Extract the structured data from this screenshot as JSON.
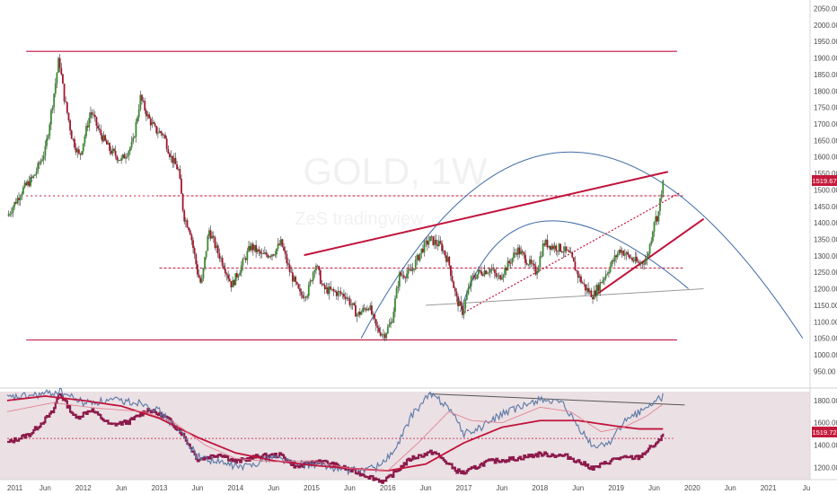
{
  "chart_data": [
    {
      "type": "candlestick",
      "watermark_symbol": "GOLD, 1W",
      "watermark_subtitle": "ZeS tradingview",
      "y_axis_ticks": [
        "2050.00",
        "2000.00",
        "1950.00",
        "1900.00",
        "1850.00",
        "1800.00",
        "1750.00",
        "1700.00",
        "1650.00",
        "1600.00",
        "1550.00",
        "1500.00",
        "1450.00",
        "1400.00",
        "1350.00",
        "1300.00",
        "1250.00",
        "1200.00",
        "1150.00",
        "1100.00",
        "1050.00",
        "1000.00",
        "950.00"
      ],
      "y_range": [
        910,
        2065
      ],
      "x_axis_ticks": [
        "2011",
        "Jun",
        "2012",
        "Jun",
        "2013",
        "Jun",
        "2014",
        "Jun",
        "2015",
        "Jun",
        "2016",
        "Jun",
        "2017",
        "Jun",
        "2018",
        "Jun",
        "2019",
        "Jun",
        "2020",
        "Jun",
        "2021",
        "Ju"
      ],
      "x_range": [
        2011.0,
        2021.5
      ],
      "last_price_label": "1519.67",
      "price_path": [
        [
          2011.0,
          1420
        ],
        [
          2011.2,
          1500
        ],
        [
          2011.35,
          1540
        ],
        [
          2011.5,
          1620
        ],
        [
          2011.62,
          1800
        ],
        [
          2011.68,
          1900
        ],
        [
          2011.75,
          1780
        ],
        [
          2011.85,
          1660
        ],
        [
          2011.95,
          1600
        ],
        [
          2012.1,
          1740
        ],
        [
          2012.2,
          1680
        ],
        [
          2012.35,
          1620
        ],
        [
          2012.5,
          1590
        ],
        [
          2012.65,
          1640
        ],
        [
          2012.75,
          1780
        ],
        [
          2012.85,
          1720
        ],
        [
          2012.95,
          1680
        ],
        [
          2013.05,
          1670
        ],
        [
          2013.15,
          1600
        ],
        [
          2013.25,
          1560
        ],
        [
          2013.32,
          1420
        ],
        [
          2013.4,
          1380
        ],
        [
          2013.5,
          1250
        ],
        [
          2013.55,
          1210
        ],
        [
          2013.65,
          1380
        ],
        [
          2013.75,
          1320
        ],
        [
          2013.85,
          1270
        ],
        [
          2013.95,
          1210
        ],
        [
          2014.1,
          1280
        ],
        [
          2014.2,
          1330
        ],
        [
          2014.35,
          1300
        ],
        [
          2014.5,
          1310
        ],
        [
          2014.6,
          1340
        ],
        [
          2014.7,
          1260
        ],
        [
          2014.85,
          1180
        ],
        [
          2014.95,
          1190
        ],
        [
          2015.05,
          1280
        ],
        [
          2015.15,
          1200
        ],
        [
          2015.3,
          1190
        ],
        [
          2015.45,
          1180
        ],
        [
          2015.6,
          1120
        ],
        [
          2015.75,
          1150
        ],
        [
          2015.85,
          1080
        ],
        [
          2015.95,
          1060
        ],
        [
          2016.05,
          1100
        ],
        [
          2016.15,
          1240
        ],
        [
          2016.3,
          1250
        ],
        [
          2016.45,
          1320
        ],
        [
          2016.55,
          1350
        ],
        [
          2016.7,
          1330
        ],
        [
          2016.8,
          1280
        ],
        [
          2016.9,
          1170
        ],
        [
          2016.98,
          1130
        ],
        [
          2017.1,
          1230
        ],
        [
          2017.2,
          1250
        ],
        [
          2017.35,
          1260
        ],
        [
          2017.45,
          1230
        ],
        [
          2017.6,
          1280
        ],
        [
          2017.7,
          1320
        ],
        [
          2017.85,
          1280
        ],
        [
          2017.95,
          1250
        ],
        [
          2018.05,
          1340
        ],
        [
          2018.15,
          1330
        ],
        [
          2018.3,
          1320
        ],
        [
          2018.4,
          1300
        ],
        [
          2018.5,
          1240
        ],
        [
          2018.6,
          1200
        ],
        [
          2018.7,
          1180
        ],
        [
          2018.8,
          1220
        ],
        [
          2018.95,
          1280
        ],
        [
          2019.05,
          1320
        ],
        [
          2019.15,
          1300
        ],
        [
          2019.3,
          1275
        ],
        [
          2019.4,
          1290
        ],
        [
          2019.45,
          1340
        ],
        [
          2019.5,
          1410
        ],
        [
          2019.55,
          1420
        ],
        [
          2019.6,
          1505
        ],
        [
          2019.62,
          1520
        ]
      ],
      "horizontal_levels": [
        1920,
        1482,
        1263,
        1045
      ],
      "channel_lines": [
        {
          "from": [
            2014.9,
            1302
          ],
          "to": [
            2019.68,
            1555
          ]
        },
        {
          "from": [
            2017.0,
            1128
          ],
          "to": [
            2019.85,
            1493
          ]
        },
        {
          "from": [
            2018.7,
            1176
          ],
          "to": [
            2020.15,
            1412
          ]
        },
        {
          "from": [
            2016.5,
            1150
          ],
          "to": [
            2020.15,
            1200
          ]
        }
      ],
      "arcs": [
        {
          "from": [
            2015.65,
            1050
          ],
          "peak": [
            2018.4,
            1615
          ],
          "to": [
            2021.45,
            1050
          ]
        },
        {
          "from": [
            2016.95,
            1130
          ],
          "peak": [
            2018.05,
            1405
          ],
          "to": [
            2019.95,
            1200
          ]
        }
      ]
    },
    {
      "type": "line",
      "y_axis_ticks": [
        "1800.00",
        "1600.00",
        "1400.00",
        "1200.00"
      ],
      "y_range": [
        1090,
        1880
      ],
      "last_value_label": "1519.72",
      "series": [
        {
          "color": "#8b1a4a",
          "values": [
            [
              2011.0,
              1420
            ],
            [
              2011.3,
              1500
            ],
            [
              2011.6,
              1700
            ],
            [
              2011.68,
              1870
            ],
            [
              2011.9,
              1640
            ],
            [
              2012.1,
              1720
            ],
            [
              2012.35,
              1580
            ],
            [
              2012.6,
              1610
            ],
            [
              2012.85,
              1720
            ],
            [
              2013.1,
              1640
            ],
            [
              2013.3,
              1500
            ],
            [
              2013.5,
              1270
            ],
            [
              2013.8,
              1320
            ],
            [
              2014.0,
              1250
            ],
            [
              2014.3,
              1300
            ],
            [
              2014.6,
              1310
            ],
            [
              2014.8,
              1200
            ],
            [
              2015.1,
              1260
            ],
            [
              2015.4,
              1200
            ],
            [
              2015.7,
              1130
            ],
            [
              2015.95,
              1070
            ],
            [
              2016.3,
              1280
            ],
            [
              2016.6,
              1340
            ],
            [
              2016.9,
              1170
            ],
            [
              2017.0,
              1150
            ],
            [
              2017.3,
              1250
            ],
            [
              2017.7,
              1280
            ],
            [
              2018.0,
              1320
            ],
            [
              2018.35,
              1300
            ],
            [
              2018.7,
              1190
            ],
            [
              2019.0,
              1280
            ],
            [
              2019.3,
              1290
            ],
            [
              2019.45,
              1380
            ],
            [
              2019.55,
              1420
            ],
            [
              2019.62,
              1520
            ]
          ]
        },
        {
          "color": "#5a78a6",
          "values": [
            [
              2011.0,
              1820
            ],
            [
              2011.4,
              1850
            ],
            [
              2011.7,
              1880
            ],
            [
              2012.0,
              1780
            ],
            [
              2012.4,
              1800
            ],
            [
              2012.8,
              1780
            ],
            [
              2013.0,
              1700
            ],
            [
              2013.3,
              1500
            ],
            [
              2013.5,
              1300
            ],
            [
              2013.8,
              1240
            ],
            [
              2014.1,
              1200
            ],
            [
              2014.5,
              1300
            ],
            [
              2014.8,
              1230
            ],
            [
              2015.1,
              1220
            ],
            [
              2015.5,
              1170
            ],
            [
              2015.85,
              1200
            ],
            [
              2016.1,
              1350
            ],
            [
              2016.3,
              1650
            ],
            [
              2016.55,
              1860
            ],
            [
              2016.8,
              1750
            ],
            [
              2017.0,
              1500
            ],
            [
              2017.2,
              1550
            ],
            [
              2017.5,
              1680
            ],
            [
              2017.8,
              1750
            ],
            [
              2018.0,
              1820
            ],
            [
              2018.3,
              1760
            ],
            [
              2018.5,
              1560
            ],
            [
              2018.7,
              1380
            ],
            [
              2018.9,
              1420
            ],
            [
              2019.1,
              1600
            ],
            [
              2019.35,
              1720
            ],
            [
              2019.5,
              1780
            ],
            [
              2019.62,
              1840
            ]
          ]
        },
        {
          "color": "#c0143c",
          "values": [
            [
              2011.0,
              1800
            ],
            [
              2011.5,
              1840
            ],
            [
              2012.0,
              1800
            ],
            [
              2012.5,
              1750
            ],
            [
              2013.0,
              1640
            ],
            [
              2013.5,
              1470
            ],
            [
              2014.0,
              1330
            ],
            [
              2014.5,
              1260
            ],
            [
              2015.0,
              1220
            ],
            [
              2015.5,
              1190
            ],
            [
              2016.0,
              1170
            ],
            [
              2016.5,
              1230
            ],
            [
              2017.0,
              1420
            ],
            [
              2017.5,
              1560
            ],
            [
              2018.0,
              1620
            ],
            [
              2018.5,
              1620
            ],
            [
              2019.0,
              1570
            ],
            [
              2019.3,
              1545
            ],
            [
              2019.62,
              1545
            ]
          ]
        },
        {
          "color": "#e07a8a",
          "values": [
            [
              2011.0,
              1700
            ],
            [
              2011.6,
              1780
            ],
            [
              2012.2,
              1730
            ],
            [
              2012.8,
              1700
            ],
            [
              2013.2,
              1600
            ],
            [
              2013.6,
              1400
            ],
            [
              2014.0,
              1280
            ],
            [
              2014.5,
              1250
            ],
            [
              2015.0,
              1260
            ],
            [
              2015.5,
              1190
            ],
            [
              2016.0,
              1170
            ],
            [
              2016.4,
              1420
            ],
            [
              2016.8,
              1700
            ],
            [
              2017.1,
              1620
            ],
            [
              2017.5,
              1600
            ],
            [
              2018.0,
              1740
            ],
            [
              2018.4,
              1700
            ],
            [
              2018.8,
              1520
            ],
            [
              2019.1,
              1560
            ],
            [
              2019.4,
              1660
            ],
            [
              2019.62,
              1770
            ]
          ]
        }
      ],
      "trend_line": {
        "from": [
          2016.55,
          1860
        ],
        "to": [
          2019.9,
          1760
        ]
      },
      "h_level": 1460
    }
  ]
}
